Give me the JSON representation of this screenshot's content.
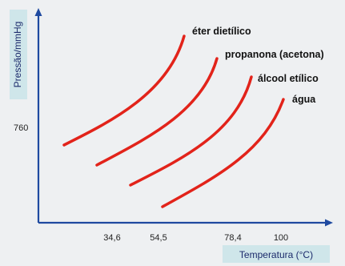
{
  "chart_data": {
    "type": "line",
    "title": "",
    "xlabel": "Temperatura (°C)",
    "ylabel": "Pressão/mmHg",
    "x_ticks": [
      "34,6",
      "54,5",
      "78,4",
      "100"
    ],
    "y_ticks": [
      "760"
    ],
    "series": [
      {
        "name": "éter dietílico",
        "x": [
          10,
          22,
          34.6,
          44,
          52
        ],
        "y": [
          520,
          640,
          760,
          930,
          1130
        ]
      },
      {
        "name": "propanona (acetona)",
        "x": [
          28,
          42,
          54.5,
          66,
          74
        ],
        "y": [
          440,
          600,
          760,
          950,
          1150
        ]
      },
      {
        "name": "álcool etílico",
        "x": [
          50,
          64,
          78.4,
          88,
          96
        ],
        "y": [
          360,
          540,
          760,
          950,
          1130
        ]
      },
      {
        "name": "água",
        "x": [
          72,
          86,
          100,
          110,
          117
        ],
        "y": [
          260,
          470,
          760,
          960,
          1090
        ]
      }
    ],
    "grid": false,
    "line_color": "#e2231a"
  }
}
